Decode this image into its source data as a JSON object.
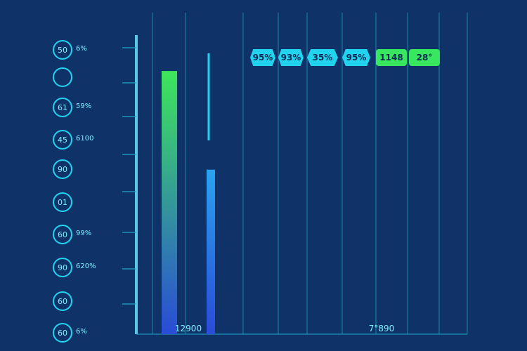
{
  "colors": {
    "background": "#0f3369",
    "gridline": "#1fa9c7",
    "cyan": "#22d3ee",
    "green": "#39e75f",
    "bar_top": "#3ee65a",
    "bar_bottom": "#2a4bd8"
  },
  "y_badges": [
    {
      "value": "50",
      "sub": "6%"
    },
    {
      "value": "",
      "sub": ""
    },
    {
      "value": "61",
      "sub": "59%"
    },
    {
      "value": "45",
      "sub": "6100"
    },
    {
      "value": "90",
      "sub": ""
    },
    {
      "value": "01",
      "sub": ""
    },
    {
      "value": "60",
      "sub": "99%"
    },
    {
      "value": "90",
      "sub": "620%"
    },
    {
      "value": "60",
      "sub": ""
    },
    {
      "value": "60",
      "sub": "6%"
    }
  ],
  "top_labels": [
    {
      "text": "95%",
      "style": "cyan"
    },
    {
      "text": "93%",
      "style": "cyan"
    },
    {
      "text": "35%",
      "style": "cyan"
    },
    {
      "text": "95%",
      "style": "cyan"
    },
    {
      "text": "1148",
      "style": "green"
    },
    {
      "text": "28°",
      "style": "green"
    }
  ],
  "chart_data": {
    "type": "bar",
    "ylim": [
      0,
      100
    ],
    "values": [
      88,
      55
    ],
    "bottom_labels": [
      "12900",
      "7°890"
    ],
    "grid": true
  }
}
